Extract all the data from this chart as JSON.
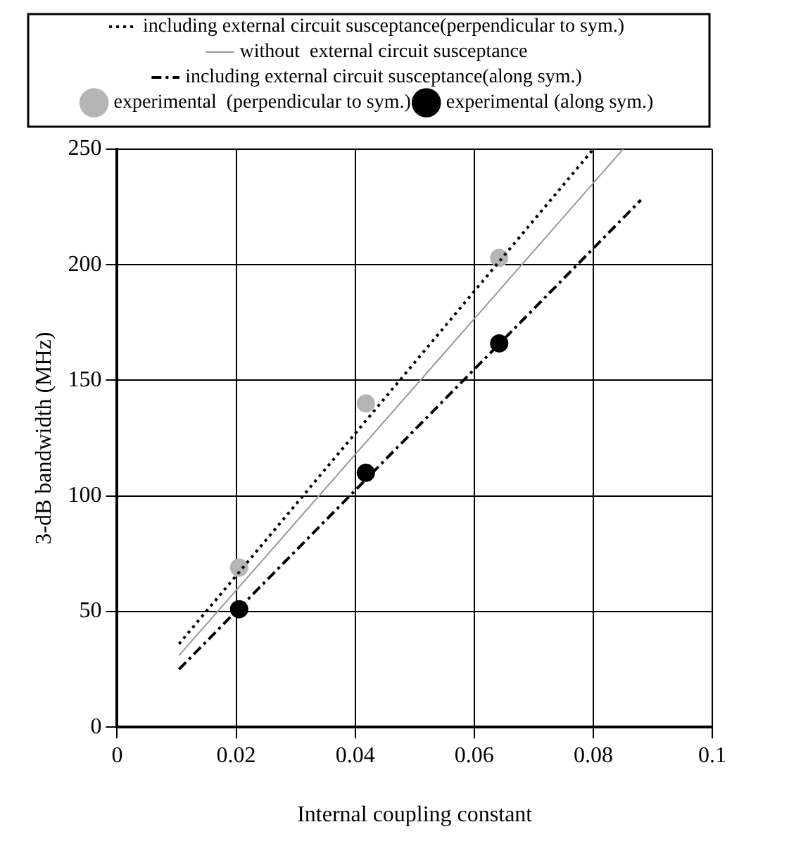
{
  "chart_data": {
    "type": "line",
    "xlabel": "Internal coupling constant",
    "ylabel": "3-dB bandwidth (MHz)",
    "xlim": [
      0,
      0.1
    ],
    "xticks": [
      0,
      0.02,
      0.04,
      0.06,
      0.08,
      0.1
    ],
    "ylim": [
      0,
      250
    ],
    "yticks": [
      0,
      50,
      100,
      150,
      200,
      250
    ],
    "grid": true,
    "legend": "top",
    "series": [
      {
        "name": "including external circuit susceptance(perpendicular to sym.)",
        "color": "#000000",
        "line_style": "dotted",
        "marker": "none",
        "x": [
          0.0104,
          0.08
        ],
        "values": [
          36,
          250
        ]
      },
      {
        "name": "without  external circuit susceptance",
        "color": "#999999",
        "line_style": "solid",
        "marker": "none",
        "x": [
          0.0104,
          0.085
        ],
        "values": [
          31,
          250
        ]
      },
      {
        "name": "including external circuit susceptance(along sym.)",
        "color": "#000000",
        "line_style": "dashed",
        "marker": "none",
        "x": [
          0.0104,
          0.088
        ],
        "values": [
          25,
          228
        ]
      },
      {
        "name": "experimental  (perpendicular to sym.)",
        "type": "scatter",
        "color": "#b5b5b5",
        "marker": "circle",
        "x": [
          0.0205,
          0.0418,
          0.0642
        ],
        "values": [
          69,
          140,
          203
        ]
      },
      {
        "name": "experimental (along sym.)",
        "type": "scatter",
        "color": "#000000",
        "marker": "circle",
        "x": [
          0.0205,
          0.0418,
          0.0642
        ],
        "values": [
          51,
          110,
          166
        ]
      }
    ]
  }
}
